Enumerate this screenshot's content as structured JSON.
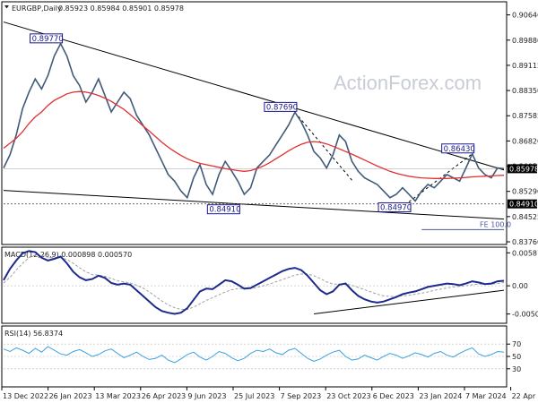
{
  "header": {
    "symbol": "EURGBP,Daily",
    "ohlc": "0.85923 0.85984 0.85901 0.85978"
  },
  "watermark": "ActionForex.com",
  "colors": {
    "price": "#425a7a",
    "ma": "#e03030",
    "macd": "#1c2a8c",
    "signal": "#a0a0a0",
    "rsi": "#3ba0e0",
    "trend": "#000000",
    "fib": "#4a5aa6",
    "callout_border": "#1a1a8c",
    "price_tag": "#000000",
    "level_tag": "#000000"
  },
  "chart_data": [
    {
      "type": "line",
      "panel": "price",
      "title": "EURGBP,Daily",
      "y_ticks": [
        "0.90646",
        "0.89880",
        "0.89115",
        "0.88350",
        "0.87585",
        "0.86820",
        "0.86055",
        "0.85290",
        "0.84525",
        "0.83760"
      ],
      "ylim": [
        0.8376,
        0.9088
      ],
      "x_ticks": [
        "13 Dec 2022",
        "26 Jan 2023",
        "13 Mar 2023",
        "26 Apr 2023",
        "9 Jun 2023",
        "25 Jul 2023",
        "7 Sep 2023",
        "23 Oct 2023",
        "6 Dec 2023",
        "23 Jan 2024",
        "7 Mar 2024",
        "22 Apr 2024"
      ],
      "series": [
        {
          "name": "",
          "values": [
            0.86,
            0.864,
            0.87,
            0.878,
            0.883,
            0.887,
            0.884,
            0.888,
            0.894,
            0.8977,
            0.894,
            0.888,
            0.885,
            0.88,
            0.883,
            0.887,
            0.882,
            0.877,
            0.88,
            0.883,
            0.881,
            0.876,
            0.873,
            0.87,
            0.866,
            0.862,
            0.858,
            0.856,
            0.853,
            0.851,
            0.857,
            0.861,
            0.855,
            0.852,
            0.858,
            0.862,
            0.8591,
            0.856,
            0.852,
            0.854,
            0.86,
            0.862,
            0.864,
            0.867,
            0.87,
            0.873,
            0.8769,
            0.874,
            0.87,
            0.865,
            0.863,
            0.86,
            0.864,
            0.87,
            0.868,
            0.862,
            0.859,
            0.857,
            0.856,
            0.855,
            0.853,
            0.851,
            0.852,
            0.854,
            0.852,
            0.85,
            0.853,
            0.855,
            0.854,
            0.856,
            0.858,
            0.857,
            0.856,
            0.86,
            0.8643,
            0.86,
            0.858,
            0.857,
            0.86,
            0.8598
          ]
        },
        {
          "name": "",
          "values": [
            0.866,
            0.8675,
            0.869,
            0.871,
            0.8735,
            0.8755,
            0.877,
            0.879,
            0.8805,
            0.8815,
            0.8825,
            0.883,
            0.8832,
            0.883,
            0.8826,
            0.882,
            0.8812,
            0.8802,
            0.879,
            0.8778,
            0.8762,
            0.8745,
            0.8728,
            0.8712,
            0.8695,
            0.8678,
            0.8663,
            0.865,
            0.8638,
            0.8628,
            0.862,
            0.8614,
            0.861,
            0.8606,
            0.8602,
            0.8598,
            0.8595,
            0.8592,
            0.859,
            0.8592,
            0.8598,
            0.8606,
            0.8616,
            0.8628,
            0.864,
            0.8652,
            0.8663,
            0.8672,
            0.8678,
            0.868,
            0.8678,
            0.8673,
            0.8666,
            0.8658,
            0.865,
            0.8642,
            0.8633,
            0.8624,
            0.8615,
            0.8606,
            0.8598,
            0.859,
            0.8584,
            0.8579,
            0.8575,
            0.8572,
            0.857,
            0.8569,
            0.8568,
            0.8568,
            0.8568,
            0.8569,
            0.857,
            0.8571,
            0.8573,
            0.8574,
            0.8575,
            0.8576,
            0.8577,
            0.8578
          ]
        }
      ],
      "callouts": [
        "0.89770",
        "0.87690",
        "0.84910",
        "0.84970",
        "0.86430"
      ],
      "last_price_tag": "0.85978",
      "level_tag": "0.84910",
      "fib_label": "FE 100.0"
    },
    {
      "type": "line",
      "panel": "macd",
      "title": "MACD(12,26,9) 0.000898 0.000570",
      "y_ticks": [
        "0.00587",
        "0.00",
        "-0.005021"
      ],
      "ylim": [
        -0.0062,
        0.0064
      ],
      "series": [
        {
          "name": "",
          "values": [
            0.001,
            0.003,
            0.0045,
            0.0058,
            0.0062,
            0.006,
            0.005,
            0.0045,
            0.0048,
            0.0052,
            0.004,
            0.0025,
            0.0015,
            0.001,
            0.0012,
            0.0018,
            0.0014,
            0.0005,
            0.0002,
            0.0004,
            0.0002,
            -0.0008,
            -0.0018,
            -0.0028,
            -0.0038,
            -0.0045,
            -0.0048,
            -0.005,
            -0.0048,
            -0.004,
            -0.0025,
            -0.001,
            -0.0005,
            -0.0006,
            0.0002,
            0.001,
            0.0008,
            0.0002,
            -0.0005,
            -0.0004,
            0.0002,
            0.0008,
            0.0014,
            0.002,
            0.0026,
            0.003,
            0.0032,
            0.0028,
            0.0018,
            0.0005,
            -0.0008,
            -0.0015,
            -0.001,
            0.0002,
            0.0004,
            -0.0008,
            -0.0018,
            -0.0024,
            -0.0028,
            -0.003,
            -0.0028,
            -0.0024,
            -0.002,
            -0.0015,
            -0.0012,
            -0.001,
            -0.0006,
            -0.0002,
            0.0,
            0.0002,
            0.0004,
            0.0003,
            0.0001,
            0.0004,
            0.0008,
            0.0006,
            0.0003,
            0.0004,
            0.0008,
            0.0009
          ]
        },
        {
          "name": "",
          "values": [
            0.0005,
            0.0015,
            0.0028,
            0.004,
            0.005,
            0.0055,
            0.0054,
            0.0051,
            0.005,
            0.005,
            0.0047,
            0.004,
            0.0032,
            0.0025,
            0.002,
            0.0019,
            0.0017,
            0.0013,
            0.0009,
            0.0007,
            0.0005,
            0.0001,
            -0.0004,
            -0.0011,
            -0.0019,
            -0.0027,
            -0.0034,
            -0.0039,
            -0.0042,
            -0.0042,
            -0.0038,
            -0.0032,
            -0.0026,
            -0.0021,
            -0.0016,
            -0.0011,
            -0.0007,
            -0.0005,
            -0.0005,
            -0.0005,
            -0.0003,
            0.0,
            0.0003,
            0.0007,
            0.0011,
            0.0015,
            0.0019,
            0.0021,
            0.0021,
            0.0018,
            0.0013,
            0.0007,
            0.0003,
            0.0003,
            0.0003,
            0.0001,
            -0.0003,
            -0.0007,
            -0.0011,
            -0.0015,
            -0.0018,
            -0.0019,
            -0.0019,
            -0.0018,
            -0.0017,
            -0.0015,
            -0.0013,
            -0.0011,
            -0.0008,
            -0.0006,
            -0.0004,
            -0.0002,
            -0.0001,
            0.0,
            0.0002,
            0.0003,
            0.0003,
            0.0003,
            0.0004,
            0.0006
          ]
        }
      ]
    },
    {
      "type": "line",
      "panel": "rsi",
      "title": "RSI(14) 56.8374",
      "y_ticks": [
        "70",
        "50",
        "30"
      ],
      "ylim": [
        5,
        95
      ],
      "series": [
        {
          "name": "",
          "values": [
            62,
            58,
            64,
            60,
            55,
            63,
            57,
            66,
            60,
            54,
            52,
            58,
            61,
            56,
            50,
            53,
            59,
            62,
            55,
            48,
            52,
            57,
            50,
            45,
            47,
            52,
            44,
            40,
            46,
            53,
            57,
            49,
            44,
            50,
            58,
            55,
            48,
            43,
            47,
            55,
            60,
            58,
            62,
            56,
            53,
            60,
            63,
            55,
            47,
            42,
            46,
            52,
            57,
            60,
            50,
            44,
            46,
            52,
            48,
            44,
            50,
            55,
            52,
            47,
            51,
            56,
            53,
            49,
            55,
            58,
            52,
            49,
            55,
            60,
            64,
            54,
            50,
            53,
            58,
            57
          ]
        }
      ]
    }
  ]
}
